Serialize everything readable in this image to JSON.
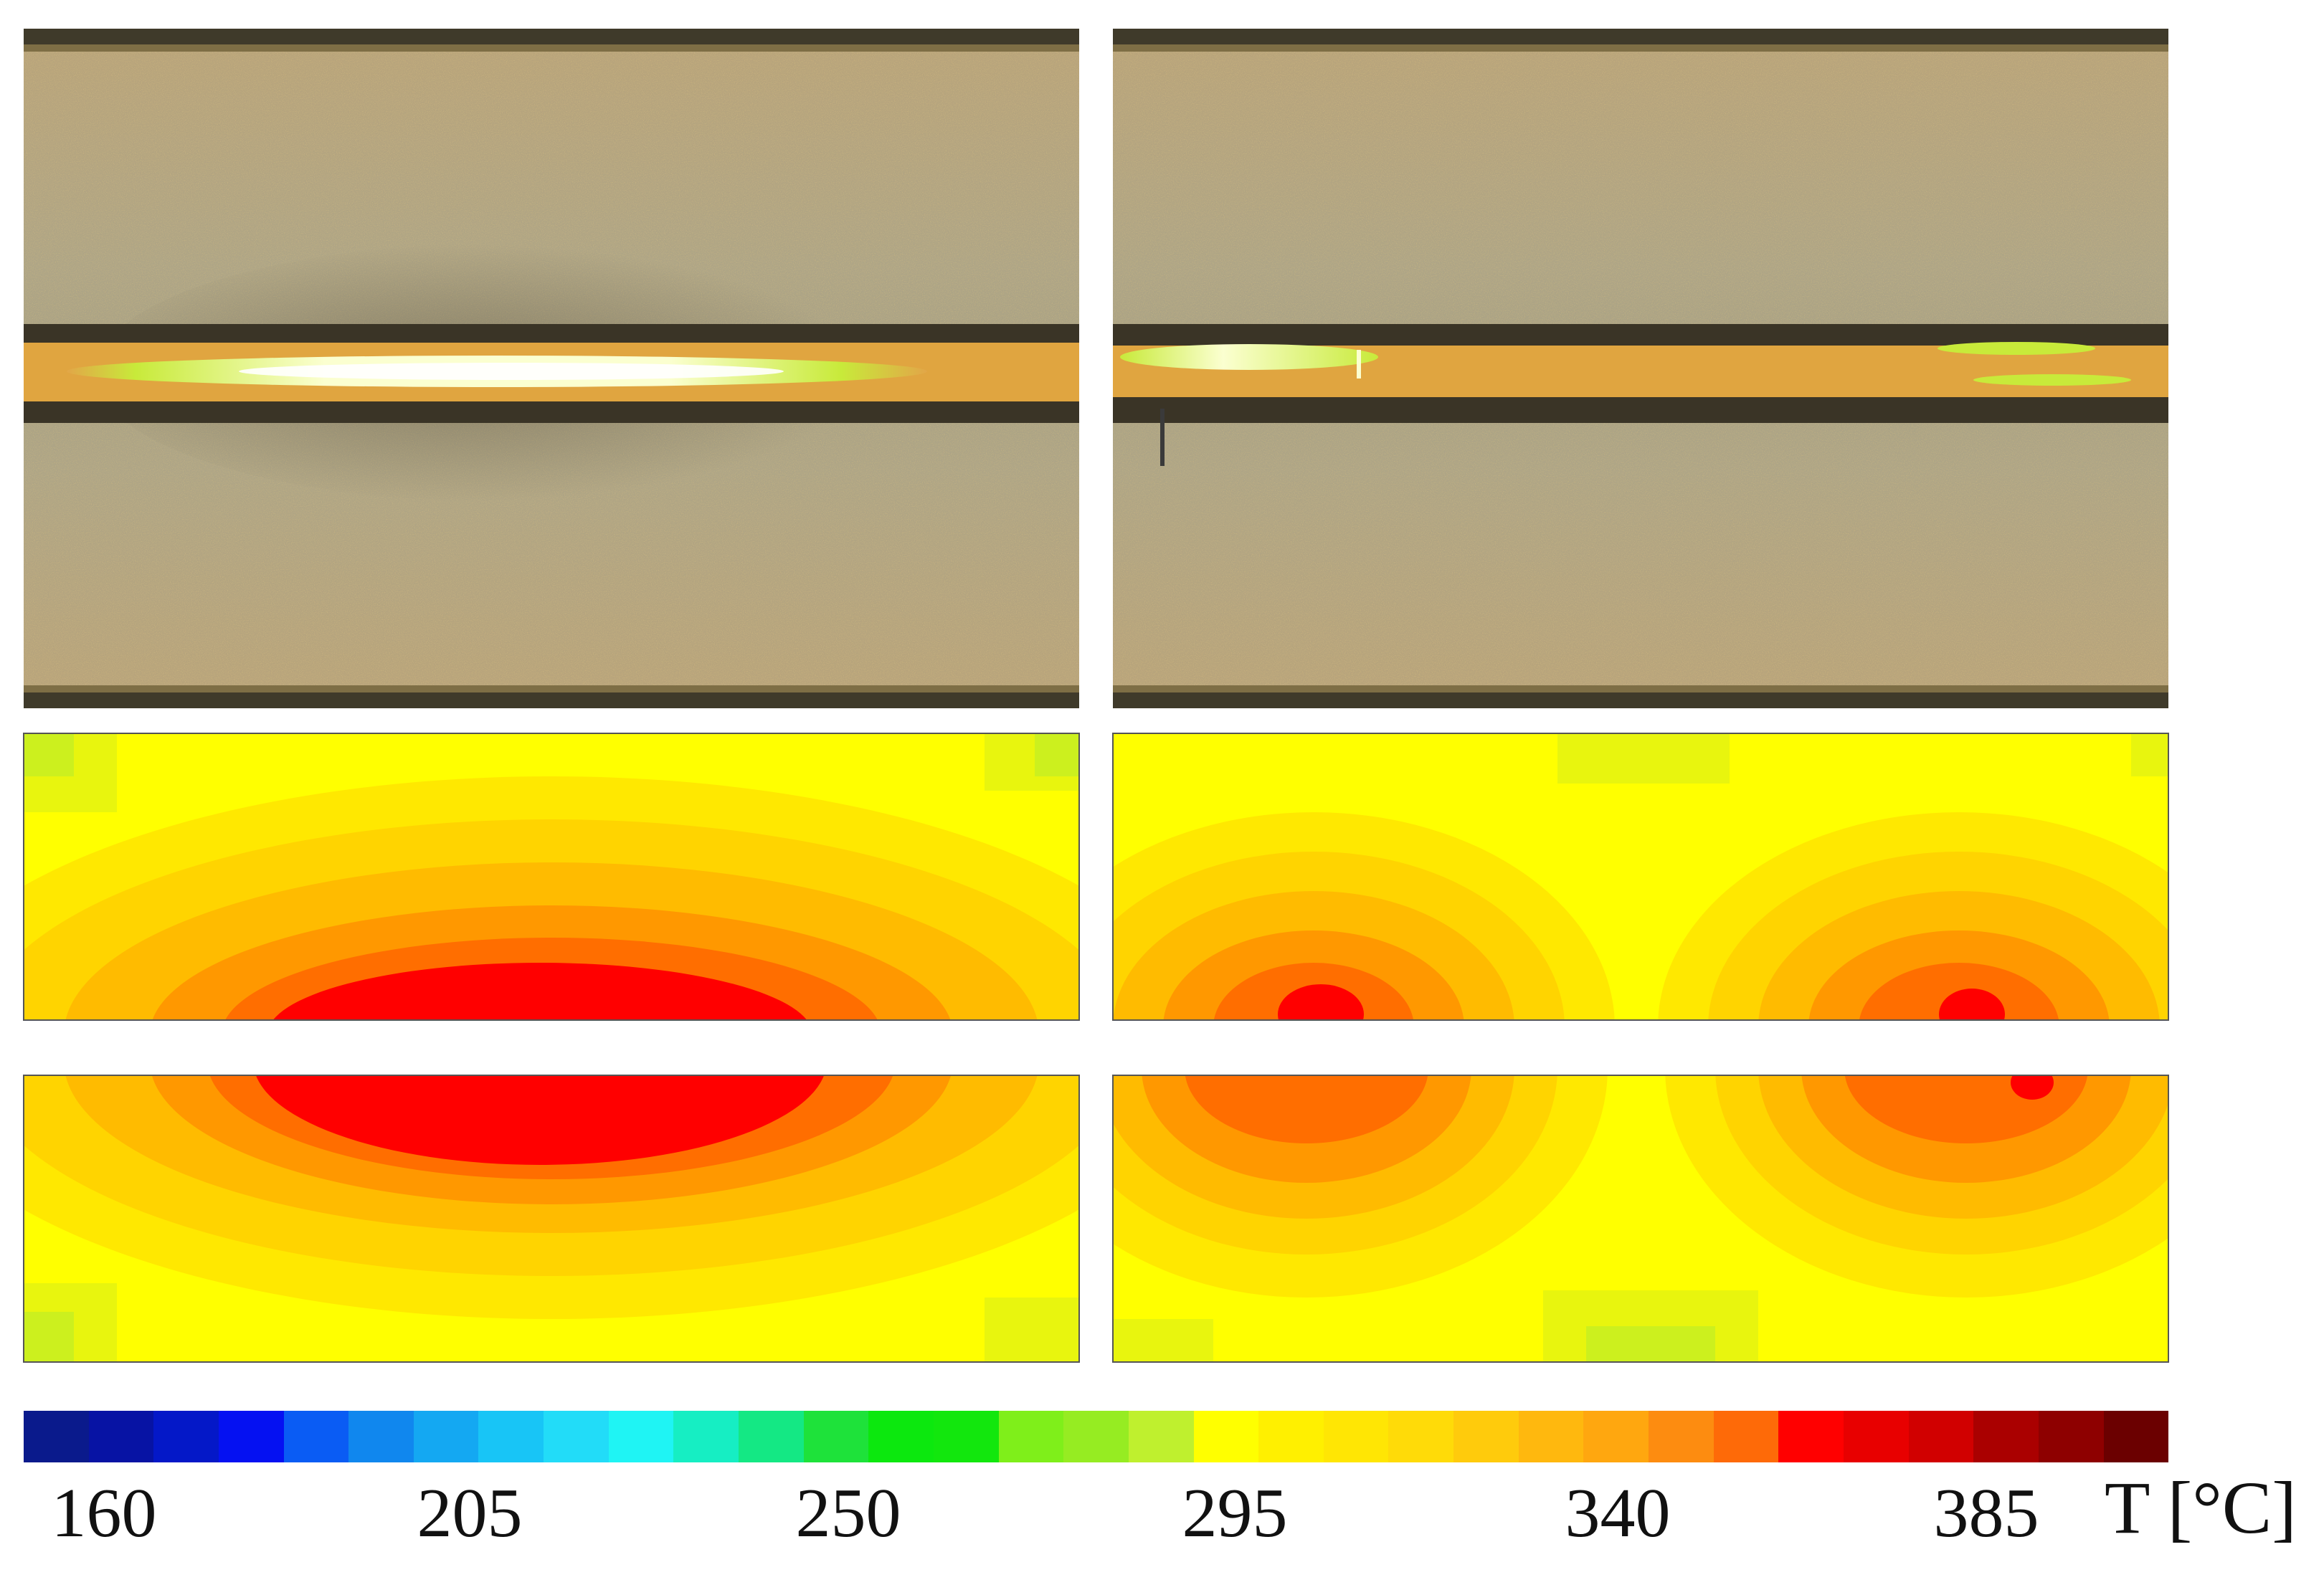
{
  "colorbar": {
    "colors": [
      "#0a1a8c",
      "#0713a4",
      "#0418c8",
      "#0511f2",
      "#0a5cf4",
      "#1087ee",
      "#14a8f2",
      "#18c5f6",
      "#22dcf8",
      "#1ff4f4",
      "#16eec3",
      "#14e884",
      "#1ee23a",
      "#0ce80e",
      "#12e70d",
      "#7fef1a",
      "#96ec22",
      "#bff02e",
      "#ffff00",
      "#fff000",
      "#ffe604",
      "#ffdb08",
      "#ffcb0c",
      "#ffb80e",
      "#ffa70f",
      "#fd8c10",
      "#fe6a08",
      "#ff0000",
      "#e80000",
      "#d10000",
      "#aa0000",
      "#8e0000",
      "#6b0000"
    ],
    "ticks": [
      {
        "label": "160",
        "value": 160
      },
      {
        "label": "205",
        "value": 205
      },
      {
        "label": "250",
        "value": 250
      },
      {
        "label": "295",
        "value": 295
      },
      {
        "label": "340",
        "value": 340
      },
      {
        "label": "385",
        "value": 385
      }
    ],
    "unit": "T [°C]"
  },
  "palette": {
    "photo_base": "#b3a47f",
    "photo_sparkle": "#d6a23c",
    "photo_edge": "#3f3a2a",
    "weld_line": "#e0a540",
    "weld_bright": "#fbffd0",
    "weld_green": "#c8ea3a",
    "field_green": "#ccf01e",
    "field_yellow": "#ffff00",
    "field_ylw2": "#ffe800",
    "field_ylw3": "#ffd400",
    "field_orange1": "#ffbb00",
    "field_orange2": "#ff9800",
    "field_orange3": "#ff6e00",
    "field_red": "#ff0000"
  }
}
